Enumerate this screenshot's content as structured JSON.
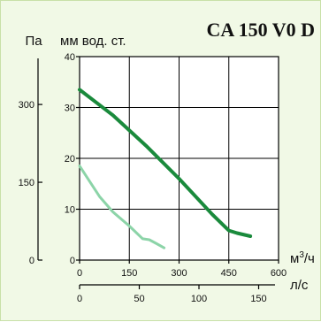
{
  "chart_data": {
    "type": "line",
    "title": "CA 150 V0 D",
    "y_primary": {
      "label": "мм вод. ст.",
      "ticks": [
        "0",
        "10",
        "20",
        "30",
        "40"
      ],
      "range": [
        0,
        40
      ]
    },
    "y_secondary": {
      "label": "Па",
      "ticks": [
        "0",
        "150",
        "300"
      ],
      "values": [
        0,
        150,
        300
      ]
    },
    "x_primary": {
      "label": "м³/ч",
      "label_base": "м",
      "label_sup": "3",
      "label_tail": "/ч",
      "ticks": [
        "0",
        "150",
        "300",
        "450",
        "600"
      ],
      "range": [
        0,
        600
      ]
    },
    "x_secondary": {
      "label": "л/с",
      "ticks": [
        "0",
        "50",
        "100",
        "150"
      ],
      "values": [
        0,
        50,
        100,
        150
      ]
    },
    "grid": true,
    "series": [
      {
        "color": "#1a8a3c",
        "points": [
          [
            0,
            33.5
          ],
          [
            50,
            31
          ],
          [
            100,
            28.5
          ],
          [
            150,
            25.5
          ],
          [
            200,
            22.5
          ],
          [
            300,
            16
          ],
          [
            400,
            9
          ],
          [
            450,
            5.8
          ],
          [
            475,
            5.3
          ],
          [
            515,
            4.7
          ]
        ]
      },
      {
        "color": "#8cd4a8",
        "points": [
          [
            0,
            18.5
          ],
          [
            30,
            15.5
          ],
          [
            60,
            12.5
          ],
          [
            100,
            9.5
          ],
          [
            150,
            6.7
          ],
          [
            190,
            4.2
          ],
          [
            210,
            4
          ],
          [
            230,
            3.3
          ],
          [
            255,
            2.4
          ]
        ]
      }
    ]
  }
}
